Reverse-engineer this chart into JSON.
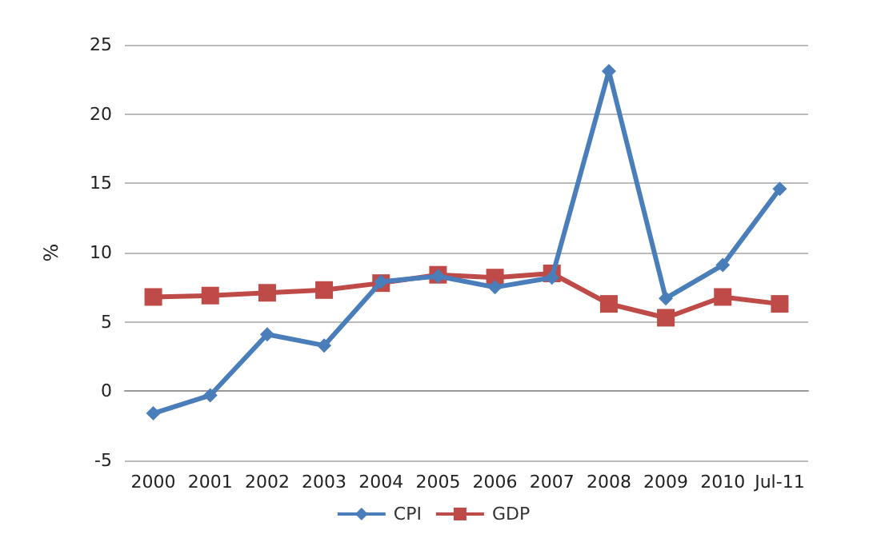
{
  "chart_data": {
    "type": "line",
    "ylabel": "%",
    "categories": [
      "2000",
      "2001",
      "2002",
      "2003",
      "2004",
      "2005",
      "2006",
      "2007",
      "2008",
      "2009",
      "2010",
      "Jul-11"
    ],
    "series": [
      {
        "name": "CPI",
        "color": "#4a7ebb",
        "marker": "diamond",
        "values": [
          -1.6,
          -0.3,
          4.1,
          3.3,
          7.9,
          8.3,
          7.5,
          8.2,
          23.1,
          6.7,
          9.1,
          14.6
        ]
      },
      {
        "name": "GDP",
        "color": "#be4b48",
        "marker": "square",
        "values": [
          6.8,
          6.9,
          7.1,
          7.3,
          7.8,
          8.4,
          8.2,
          8.5,
          6.3,
          5.3,
          6.8,
          6.3
        ]
      }
    ],
    "ylim": [
      -5,
      25
    ],
    "yticks": [
      -5,
      0,
      5,
      10,
      15,
      20,
      25
    ],
    "grid": "y",
    "legend": "bottom",
    "line_style": "solid"
  }
}
